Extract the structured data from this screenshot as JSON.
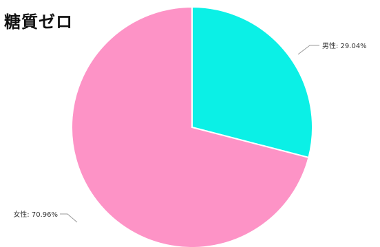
{
  "chart_data": {
    "type": "pie",
    "title": "糖質ゼロ",
    "slices": [
      {
        "label": "男性",
        "value": 29.04,
        "display": "29.04%",
        "color": "#0bf0e6"
      },
      {
        "label": "女性",
        "value": 70.96,
        "display": "70.96%",
        "color": "#fd93c6"
      }
    ],
    "start_angle": "12 o'clock",
    "direction": "clockwise",
    "legend": "none",
    "label_style": "outside with leader lines"
  }
}
